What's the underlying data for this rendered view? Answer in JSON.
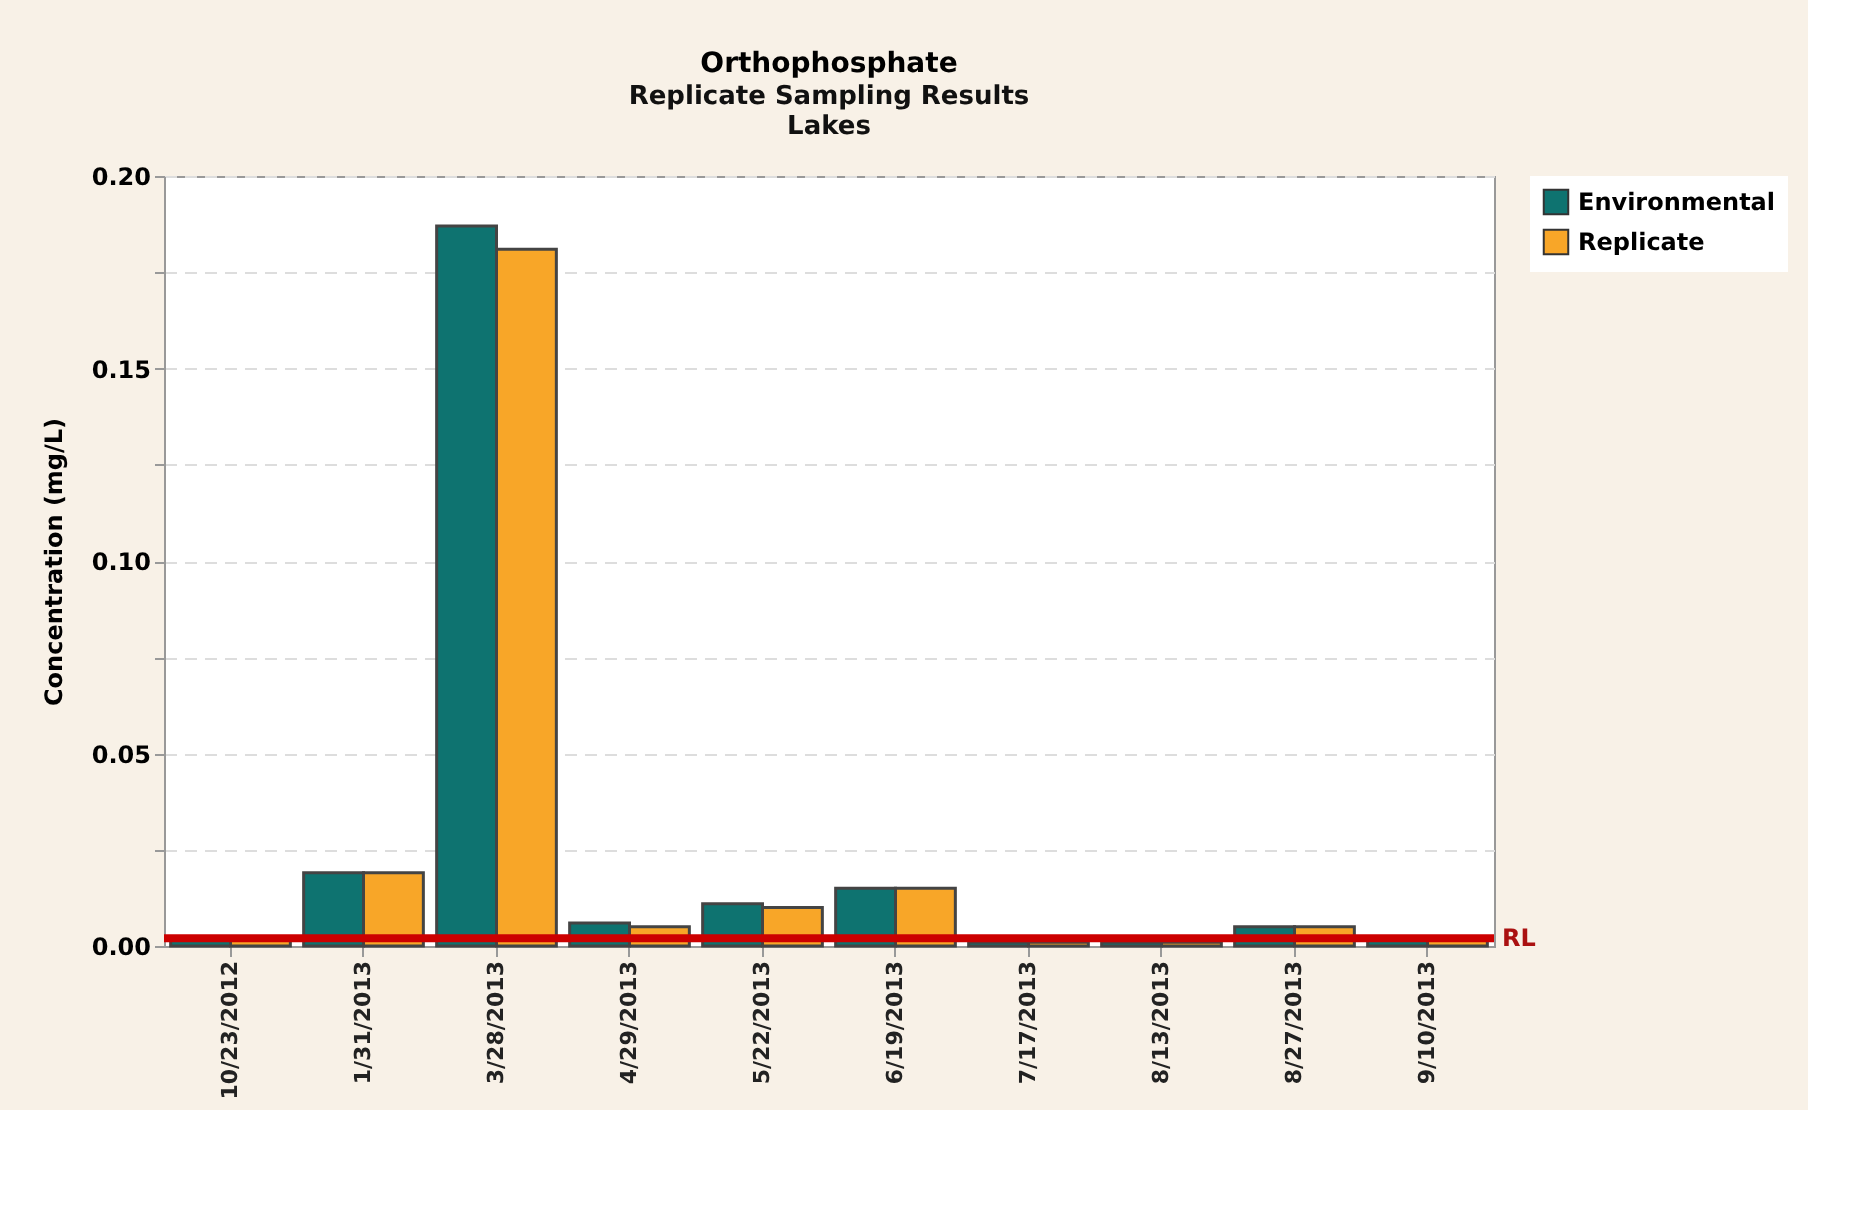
{
  "chart_data": {
    "type": "bar",
    "title": "Orthophosphate",
    "subtitle": [
      "Replicate Sampling Results",
      "Lakes"
    ],
    "ylabel": "Concentration (mg/L)",
    "categories": [
      "10/23/2012",
      "1/31/2013",
      "3/28/2013",
      "4/29/2013",
      "5/22/2013",
      "6/19/2013",
      "7/17/2013",
      "8/13/2013",
      "8/27/2013",
      "9/10/2013"
    ],
    "series": [
      {
        "name": "Environmental",
        "color": "#0e7370",
        "values": [
          0.002,
          0.019,
          0.187,
          0.006,
          0.011,
          0.015,
          0.001,
          0.001,
          0.005,
          0.002
        ]
      },
      {
        "name": "Replicate",
        "color": "#f8a628",
        "values": [
          0.002,
          0.019,
          0.181,
          0.005,
          0.01,
          0.015,
          0.001,
          0.001,
          0.005,
          0.002
        ]
      }
    ],
    "ylim": [
      0,
      0.2
    ],
    "yticks": [
      {
        "value": 0,
        "label": "0.00"
      },
      {
        "value": 0.025,
        "label": null
      },
      {
        "value": 0.05,
        "label": "0.05"
      },
      {
        "value": 0.075,
        "label": null
      },
      {
        "value": 0.1,
        "label": "0.10"
      },
      {
        "value": 0.125,
        "label": null
      },
      {
        "value": 0.15,
        "label": "0.15"
      },
      {
        "value": 0.175,
        "label": null
      },
      {
        "value": 0.2,
        "label": "0.20"
      }
    ],
    "ref_lines": [
      {
        "axis": "y",
        "value": 0.002,
        "label": "RL",
        "color": "#cc0000"
      }
    ],
    "grid": "y",
    "legend": "top right"
  }
}
